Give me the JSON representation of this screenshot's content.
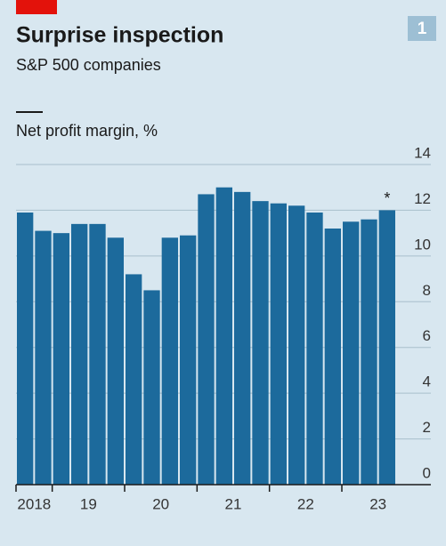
{
  "chart_data": {
    "type": "bar",
    "title": "Surprise inspection",
    "subtitle": "S&P 500 companies",
    "badge": "1",
    "legend_label": "Net profit margin, %",
    "annotation": "*",
    "x_labels": [
      "2018",
      "19",
      "20",
      "21",
      "22",
      "23"
    ],
    "values": [
      11.9,
      11.1,
      11.0,
      11.4,
      11.4,
      10.8,
      9.2,
      8.5,
      10.8,
      10.9,
      12.7,
      13.0,
      12.8,
      12.4,
      12.3,
      12.2,
      11.9,
      11.2,
      11.5,
      11.6,
      12.0
    ],
    "color": "#1c6a9c",
    "ylim": [
      0,
      14
    ],
    "yticks": [
      0,
      2,
      4,
      6,
      8,
      10,
      12,
      14
    ],
    "grid": true
  }
}
